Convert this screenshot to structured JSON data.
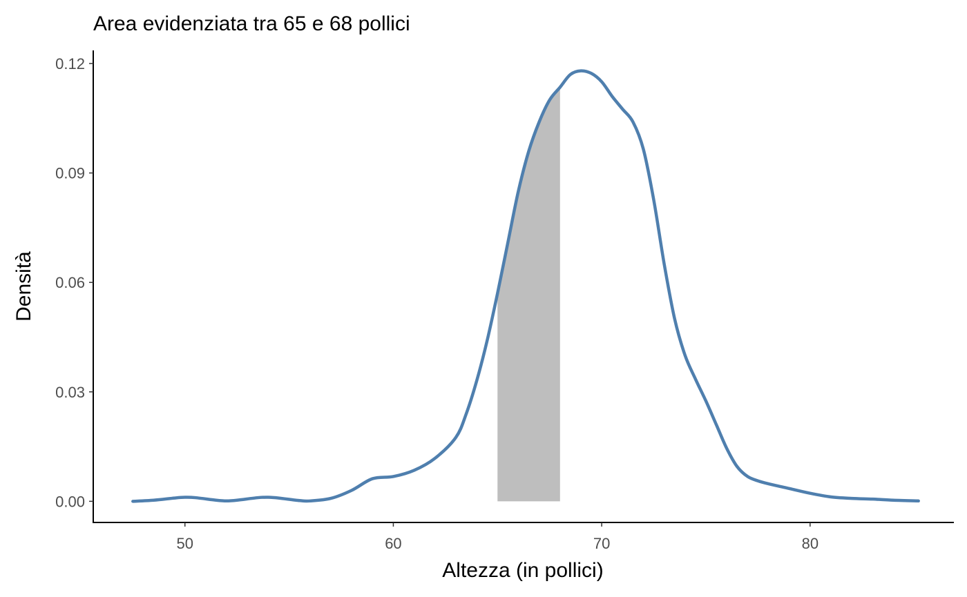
{
  "chart_data": {
    "type": "area",
    "title": "Area evidenziata tra 65 e 68 pollici",
    "xlabel": "Altezza (in pollici)",
    "ylabel": "Densità",
    "xlim": [
      45.6,
      86.9
    ],
    "ylim": [
      -0.0058,
      0.1236
    ],
    "x_ticks": [
      50,
      60,
      70,
      80
    ],
    "x_tick_labels": [
      "50",
      "60",
      "70",
      "80"
    ],
    "y_ticks": [
      0,
      0.03,
      0.06,
      0.09,
      0.12
    ],
    "y_tick_labels": [
      "0.00",
      "0.03",
      "0.06",
      "0.09",
      "0.12"
    ],
    "grid": false,
    "highlight": {
      "from": 65,
      "to": 68,
      "color": "#bebebe"
    },
    "series": [
      {
        "color": "#4f7fae",
        "x": [
          47.5,
          48.5,
          49.5,
          50.0,
          50.5,
          51.5,
          52.0,
          52.5,
          53.5,
          54.0,
          54.5,
          55.5,
          56.0,
          57.0,
          58.0,
          59.0,
          60.0,
          61.0,
          62.0,
          63.0,
          63.5,
          64.0,
          64.5,
          65.0,
          65.5,
          66.0,
          66.5,
          67.0,
          67.5,
          68.0,
          68.5,
          69.0,
          69.5,
          70.0,
          70.5,
          71.0,
          71.5,
          72.0,
          72.5,
          73.0,
          73.5,
          74.0,
          74.5,
          75.0,
          75.5,
          76.0,
          76.5,
          77.0,
          77.5,
          78.0,
          79.0,
          80.0,
          81.0,
          82.0,
          83.0,
          84.0,
          85.2
        ],
        "y": [
          0.0,
          0.0003,
          0.0009,
          0.0011,
          0.001,
          0.0003,
          0.0001,
          0.0003,
          0.001,
          0.0011,
          0.0009,
          0.0002,
          0.0001,
          0.0008,
          0.003,
          0.0062,
          0.0068,
          0.0085,
          0.0118,
          0.0175,
          0.024,
          0.033,
          0.044,
          0.057,
          0.071,
          0.085,
          0.096,
          0.104,
          0.11,
          0.1135,
          0.117,
          0.118,
          0.1173,
          0.115,
          0.111,
          0.1075,
          0.104,
          0.0965,
          0.0825,
          0.065,
          0.05,
          0.04,
          0.0335,
          0.0275,
          0.021,
          0.0145,
          0.0095,
          0.0068,
          0.0056,
          0.0048,
          0.0035,
          0.0022,
          0.0012,
          0.0008,
          0.0006,
          0.0003,
          0.0001
        ]
      }
    ]
  }
}
